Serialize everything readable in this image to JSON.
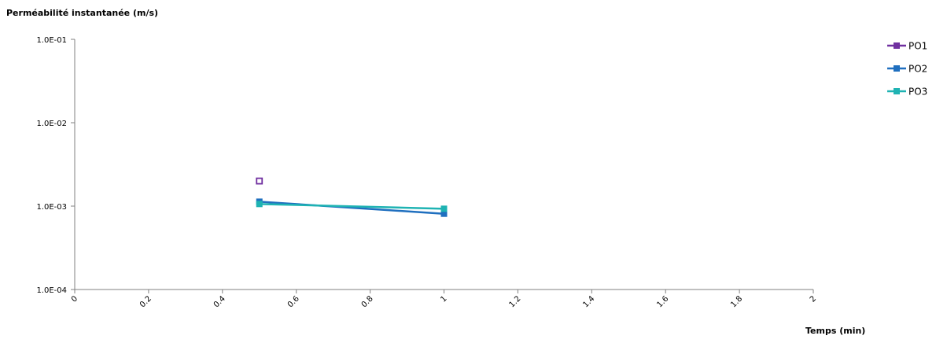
{
  "chart_data": {
    "type": "line",
    "title": "",
    "ylabel": "Perméabilité instantanée (m/s)",
    "xlabel": "Temps (min)",
    "yscale": "log",
    "ylim": [
      0.0001,
      0.1
    ],
    "xlim": [
      0,
      2
    ],
    "y_tick_labels": [
      "1.0E-01",
      "1.0E-02",
      "1.0E-03",
      "1.0E-04"
    ],
    "y_tick_values": [
      0.1,
      0.01,
      0.001,
      0.0001
    ],
    "x_tick_labels": [
      "0",
      "0.2",
      "0.4",
      "0.6",
      "0.8",
      "1",
      "1.2",
      "1.4",
      "1.6",
      "1.8",
      "2"
    ],
    "x_tick_values": [
      0,
      0.2,
      0.4,
      0.6,
      0.8,
      1,
      1.2,
      1.4,
      1.6,
      1.8,
      2
    ],
    "grid": false,
    "legend_position": "top-right",
    "series": [
      {
        "name": "PO1",
        "color": "#7030a0",
        "marker": "square-open",
        "points": [
          {
            "x": 0.5,
            "y": 0.002
          }
        ]
      },
      {
        "name": "PO2",
        "color": "#1f6fbf",
        "marker": "square",
        "points": [
          {
            "x": 0.5,
            "y": 0.00113
          },
          {
            "x": 1.0,
            "y": 0.00081
          }
        ]
      },
      {
        "name": "PO3",
        "color": "#1fb3b3",
        "marker": "square",
        "points": [
          {
            "x": 0.5,
            "y": 0.00106
          },
          {
            "x": 1.0,
            "y": 0.00093
          }
        ]
      }
    ]
  }
}
